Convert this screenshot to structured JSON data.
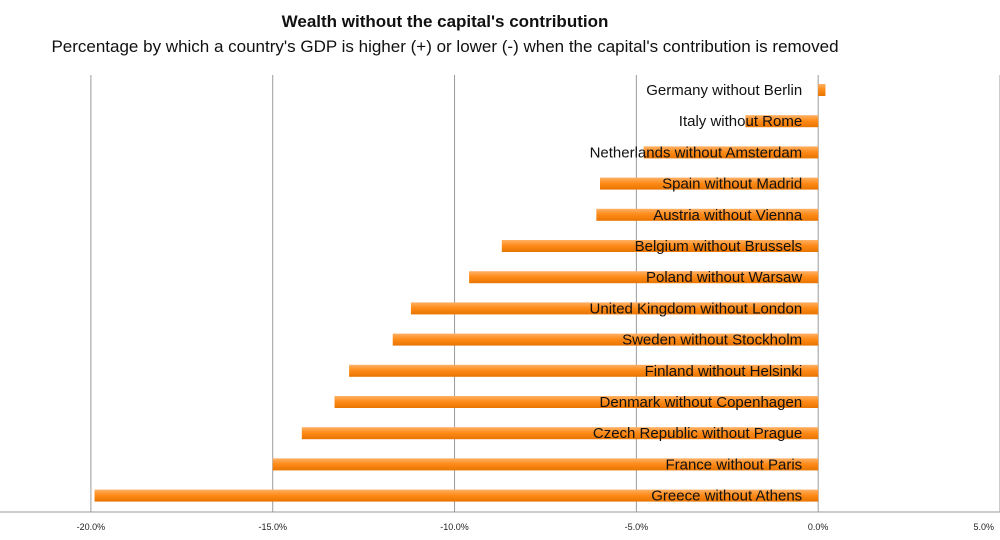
{
  "chart_data": {
    "type": "bar",
    "orientation": "horizontal",
    "title": "Wealth without the capital's contribution",
    "subtitle": "Percentage by which a country's GDP is higher (+) or lower (-) when the capital's contribution is removed",
    "categories": [
      "Germany without Berlin",
      "Italy without Rome",
      "Netherlands without Amsterdam",
      "Spain without Madrid",
      "Austria without Vienna",
      "Belgium without Brussels",
      "Poland without Warsaw",
      "United Kingdom without London",
      "Sweden without Stockholm",
      "Finland without Helsinki",
      "Denmark without Copenhagen",
      "Czech Republic without Prague",
      "France without Paris",
      "Greece without Athens"
    ],
    "values": [
      0.2,
      -2.0,
      -4.8,
      -6.0,
      -6.1,
      -8.7,
      -9.6,
      -11.2,
      -11.7,
      -12.9,
      -13.3,
      -14.2,
      -15.0,
      -19.9
    ],
    "xlim": [
      -22.5,
      5.0
    ],
    "xticks": [
      -20.0,
      -15.0,
      -10.0,
      -5.0,
      0.0,
      5.0
    ],
    "xtick_labels": [
      "-20.0%",
      "-15.0%",
      "-10.0%",
      "-5.0%",
      "0.0%",
      "5.0%"
    ],
    "grid": true,
    "legend": "none",
    "bar_color": "#ff8c1a"
  }
}
